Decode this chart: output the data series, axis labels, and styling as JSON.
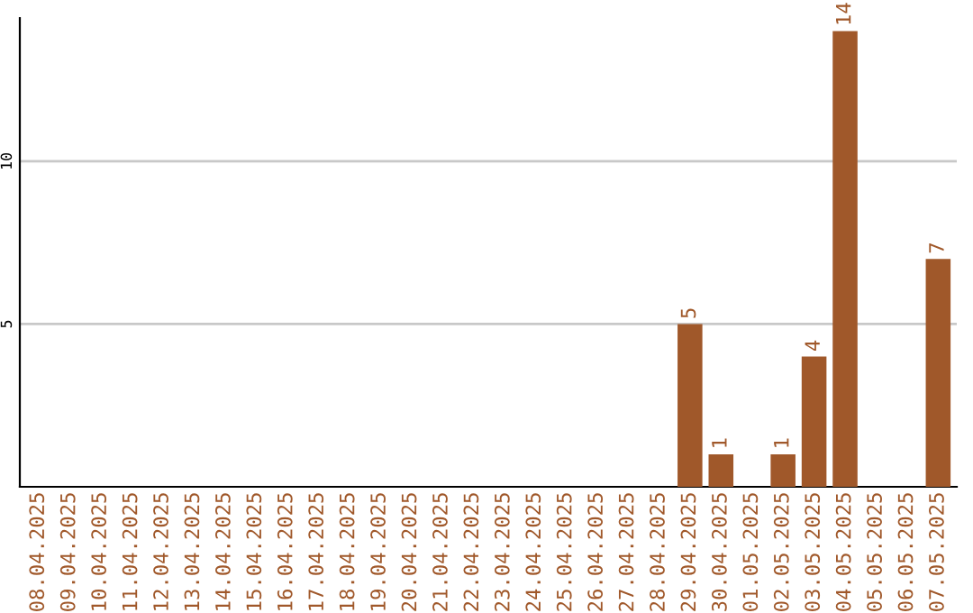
{
  "chart_data": {
    "type": "bar",
    "categories": [
      "08.04.2025",
      "09.04.2025",
      "10.04.2025",
      "11.04.2025",
      "12.04.2025",
      "13.04.2025",
      "14.04.2025",
      "15.04.2025",
      "16.04.2025",
      "17.04.2025",
      "18.04.2025",
      "19.04.2025",
      "20.04.2025",
      "21.04.2025",
      "22.04.2025",
      "23.04.2025",
      "24.04.2025",
      "25.04.2025",
      "26.04.2025",
      "27.04.2025",
      "28.04.2025",
      "29.04.2025",
      "30.04.2025",
      "01.05.2025",
      "02.05.2025",
      "03.05.2025",
      "04.05.2025",
      "05.05.2025",
      "06.05.2025",
      "07.05.2025"
    ],
    "values": [
      0,
      0,
      0,
      0,
      0,
      0,
      0,
      0,
      0,
      0,
      0,
      0,
      0,
      0,
      0,
      0,
      0,
      0,
      0,
      0,
      0,
      5,
      1,
      0,
      1,
      4,
      14,
      0,
      0,
      7
    ],
    "value_labels": [
      null,
      null,
      null,
      null,
      null,
      null,
      null,
      null,
      null,
      null,
      null,
      null,
      null,
      null,
      null,
      null,
      null,
      null,
      null,
      null,
      null,
      "5",
      "1",
      null,
      "1",
      "4",
      "14",
      null,
      null,
      "7"
    ],
    "color": "#a0582a",
    "ylim": [
      0,
      14.4
    ],
    "yticks": [
      5,
      10
    ],
    "grid": "y"
  }
}
